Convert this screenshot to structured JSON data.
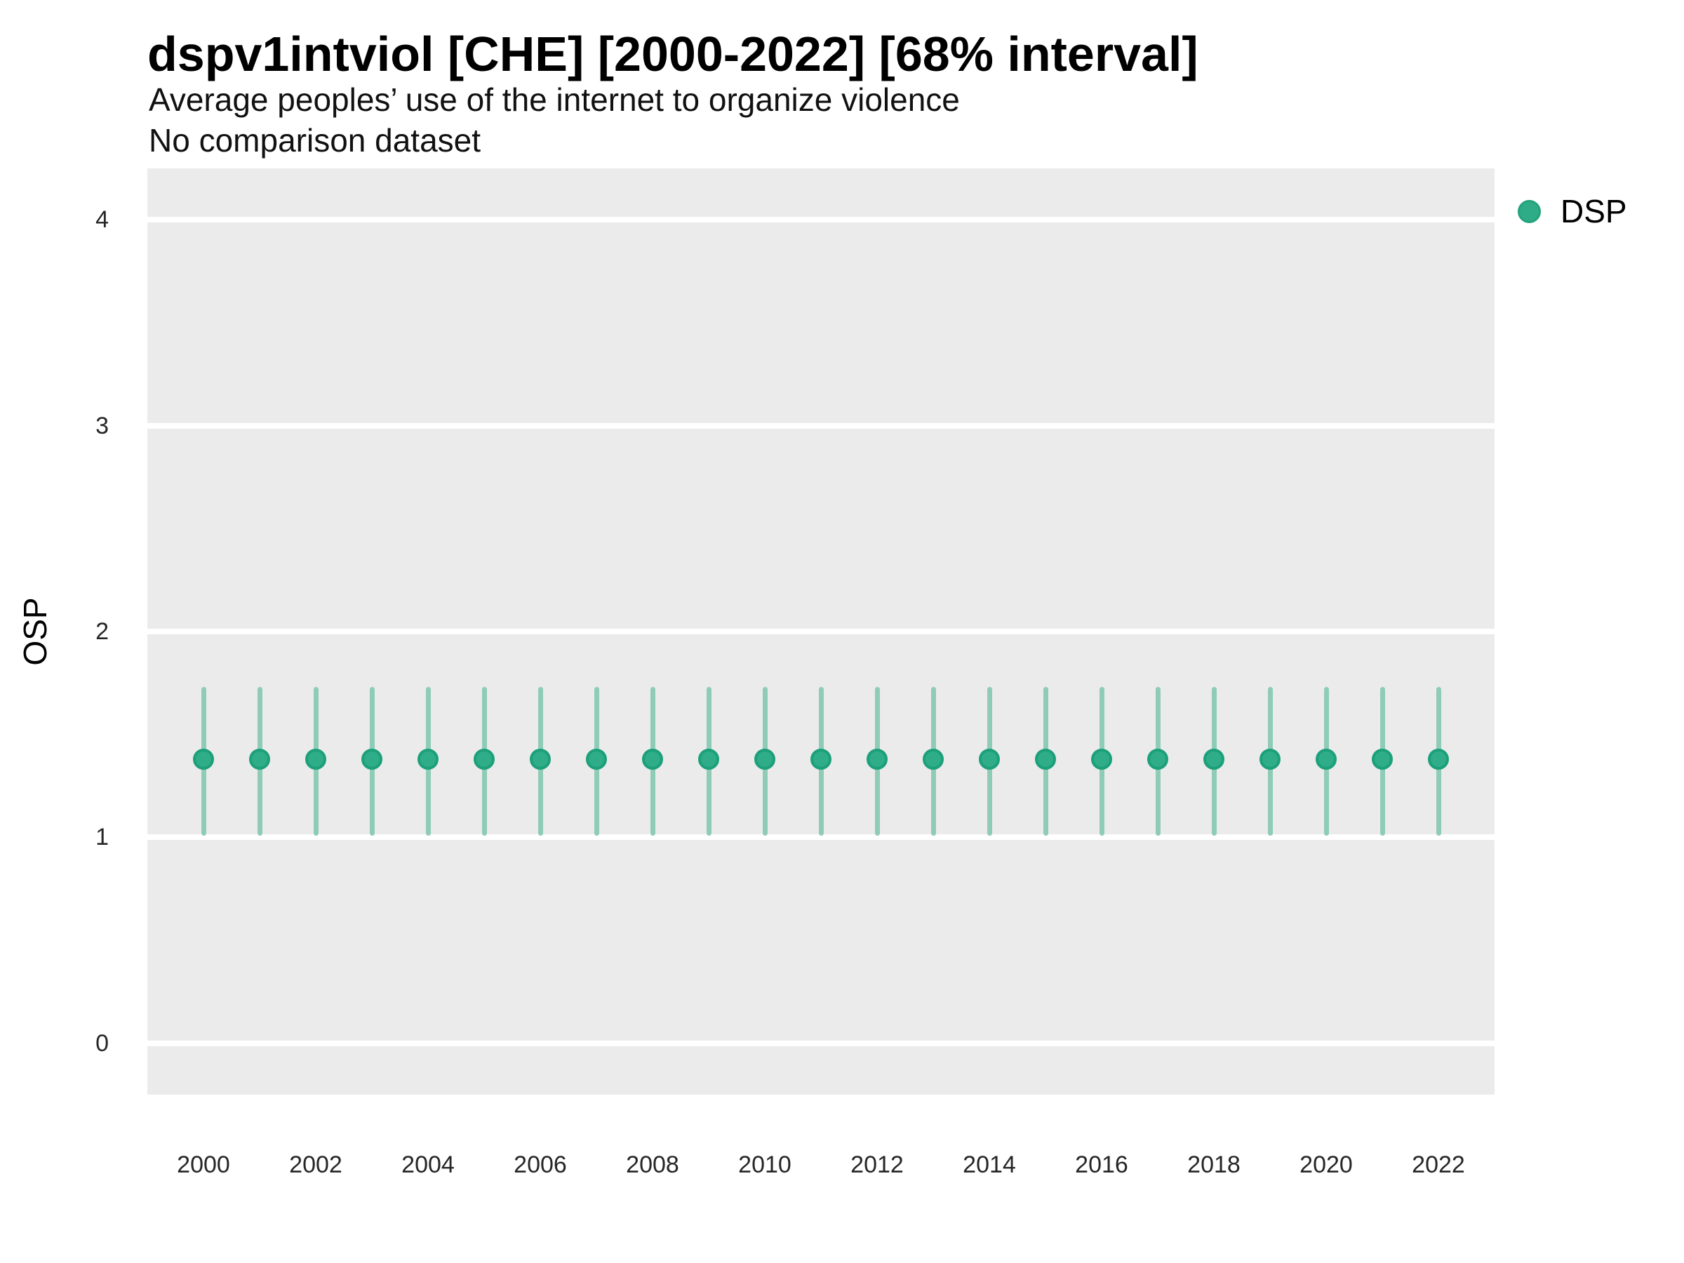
{
  "header": {
    "title": "dspv1intviol [CHE] [2000-2022] [68% interval]",
    "subtitle": "Average peoples’ use of the internet to organize violence",
    "note": "No comparison dataset"
  },
  "legend": {
    "label": "DSP",
    "marker": "circle-icon"
  },
  "colors": {
    "point_fill": "#2FAD88",
    "point_border": "#1CA07A",
    "interval_bar": "#8FCCB7",
    "legend_dot_fill": "#2EAC87",
    "legend_dot_border": "#23A37D",
    "panel_background": "#EBEBEB",
    "gridline": "#FFFFFF",
    "tick_text": "#262626",
    "text": "#000000"
  },
  "chart_data": {
    "type": "scatter",
    "title": "dspv1intviol [CHE] [2000-2022] [68% interval]",
    "subtitle": "Average peoples’ use of the internet to organize violence",
    "note": "No comparison dataset",
    "xlabel": "",
    "ylabel": "OSP",
    "interval": "68%",
    "country": "CHE",
    "grid": "horizontal white major gridlines on grey panel, no minor grid, no axis tick marks",
    "legend_position": "right-top",
    "xlim": [
      1999,
      2023
    ],
    "ylim": [
      -0.25,
      4.25
    ],
    "yticks": [
      0,
      1,
      2,
      3,
      4
    ],
    "xticks": [
      2000,
      2002,
      2004,
      2006,
      2008,
      2010,
      2012,
      2014,
      2016,
      2018,
      2020,
      2022
    ],
    "x": [
      2000,
      2001,
      2002,
      2003,
      2004,
      2005,
      2006,
      2007,
      2008,
      2009,
      2010,
      2011,
      2012,
      2013,
      2014,
      2015,
      2016,
      2017,
      2018,
      2019,
      2020,
      2021,
      2022
    ],
    "series": [
      {
        "name": "DSP",
        "estimate": [
          1.38,
          1.38,
          1.38,
          1.38,
          1.38,
          1.38,
          1.38,
          1.38,
          1.38,
          1.38,
          1.38,
          1.38,
          1.38,
          1.38,
          1.38,
          1.38,
          1.38,
          1.38,
          1.38,
          1.38,
          1.38,
          1.38,
          1.38
        ],
        "lower": [
          1.02,
          1.02,
          1.02,
          1.02,
          1.02,
          1.02,
          1.02,
          1.02,
          1.02,
          1.02,
          1.02,
          1.02,
          1.02,
          1.02,
          1.02,
          1.02,
          1.02,
          1.02,
          1.02,
          1.02,
          1.02,
          1.02,
          1.02
        ],
        "upper": [
          1.72,
          1.72,
          1.72,
          1.72,
          1.72,
          1.72,
          1.72,
          1.72,
          1.72,
          1.72,
          1.72,
          1.72,
          1.72,
          1.72,
          1.72,
          1.72,
          1.72,
          1.72,
          1.72,
          1.72,
          1.72,
          1.72,
          1.72
        ]
      }
    ]
  }
}
